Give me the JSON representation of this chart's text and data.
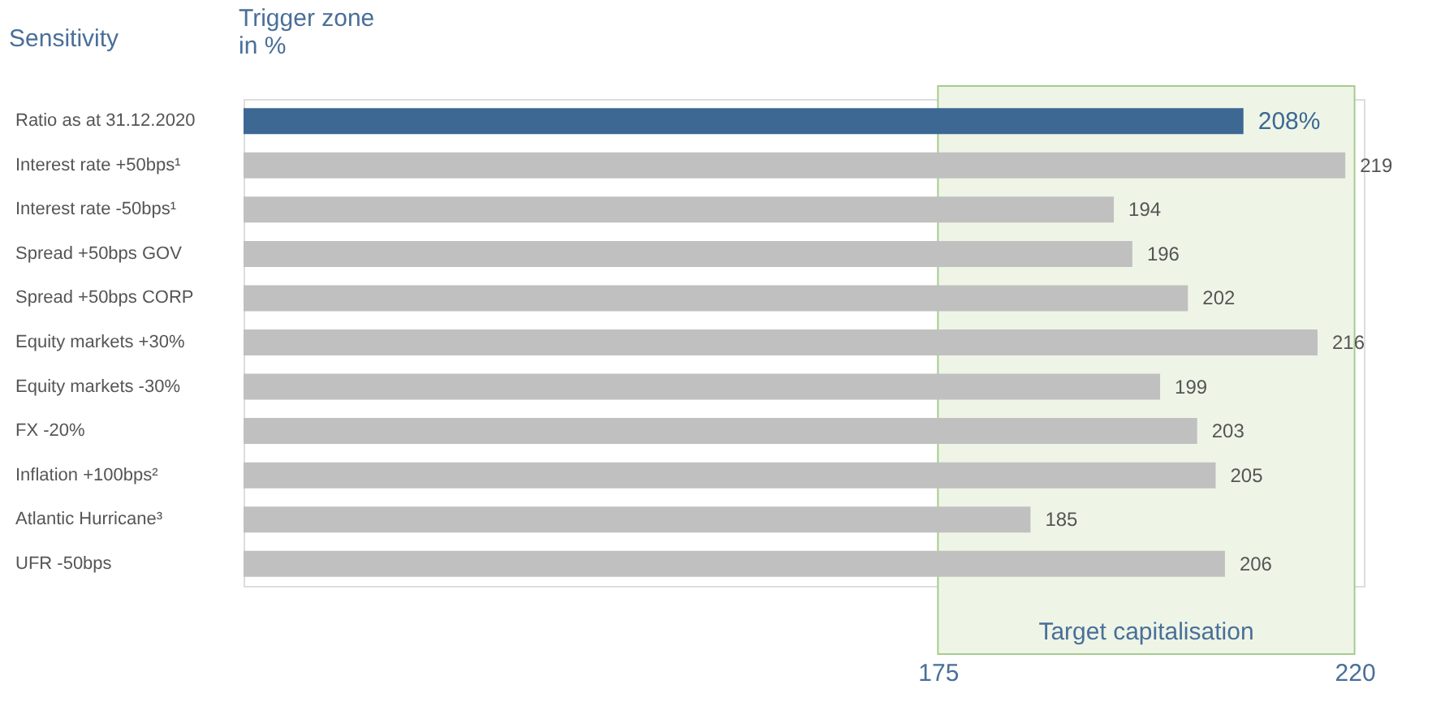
{
  "chart_data": {
    "type": "bar",
    "orientation": "horizontal",
    "title": "Trigger zone in %",
    "ylabel": "Sensitivity",
    "categories": [
      "Ratio as at 31.12.2020",
      "Interest rate +50bps¹",
      "Interest rate -50bps¹",
      "Spread +50bps GOV",
      "Spread +50bps CORP",
      "Equity markets +30%",
      "Equity markets -30%",
      "FX -20%",
      "Inflation +100bps²",
      "Atlantic Hurricane³",
      "UFR -50bps"
    ],
    "values": [
      208,
      219,
      194,
      196,
      202,
      216,
      199,
      203,
      205,
      185,
      206
    ],
    "colors": [
      "#3d6893",
      "#c0c0c0",
      "#c0c0c0",
      "#c0c0c0",
      "#c0c0c0",
      "#c0c0c0",
      "#c0c0c0",
      "#c0c0c0",
      "#c0c0c0",
      "#c0c0c0",
      "#c0c0c0"
    ],
    "value_labels": [
      "208%",
      "219",
      "194",
      "196",
      "202",
      "216",
      "199",
      "203",
      "205",
      "185",
      "206"
    ],
    "xlim": [
      100,
      221
    ],
    "xticks": [
      175,
      220
    ],
    "grid": false,
    "legend": false,
    "bands": [
      {
        "axis": "x",
        "from": 175,
        "to": 220,
        "label": "Target capitalisation",
        "color": "#eef5e6"
      }
    ]
  }
}
